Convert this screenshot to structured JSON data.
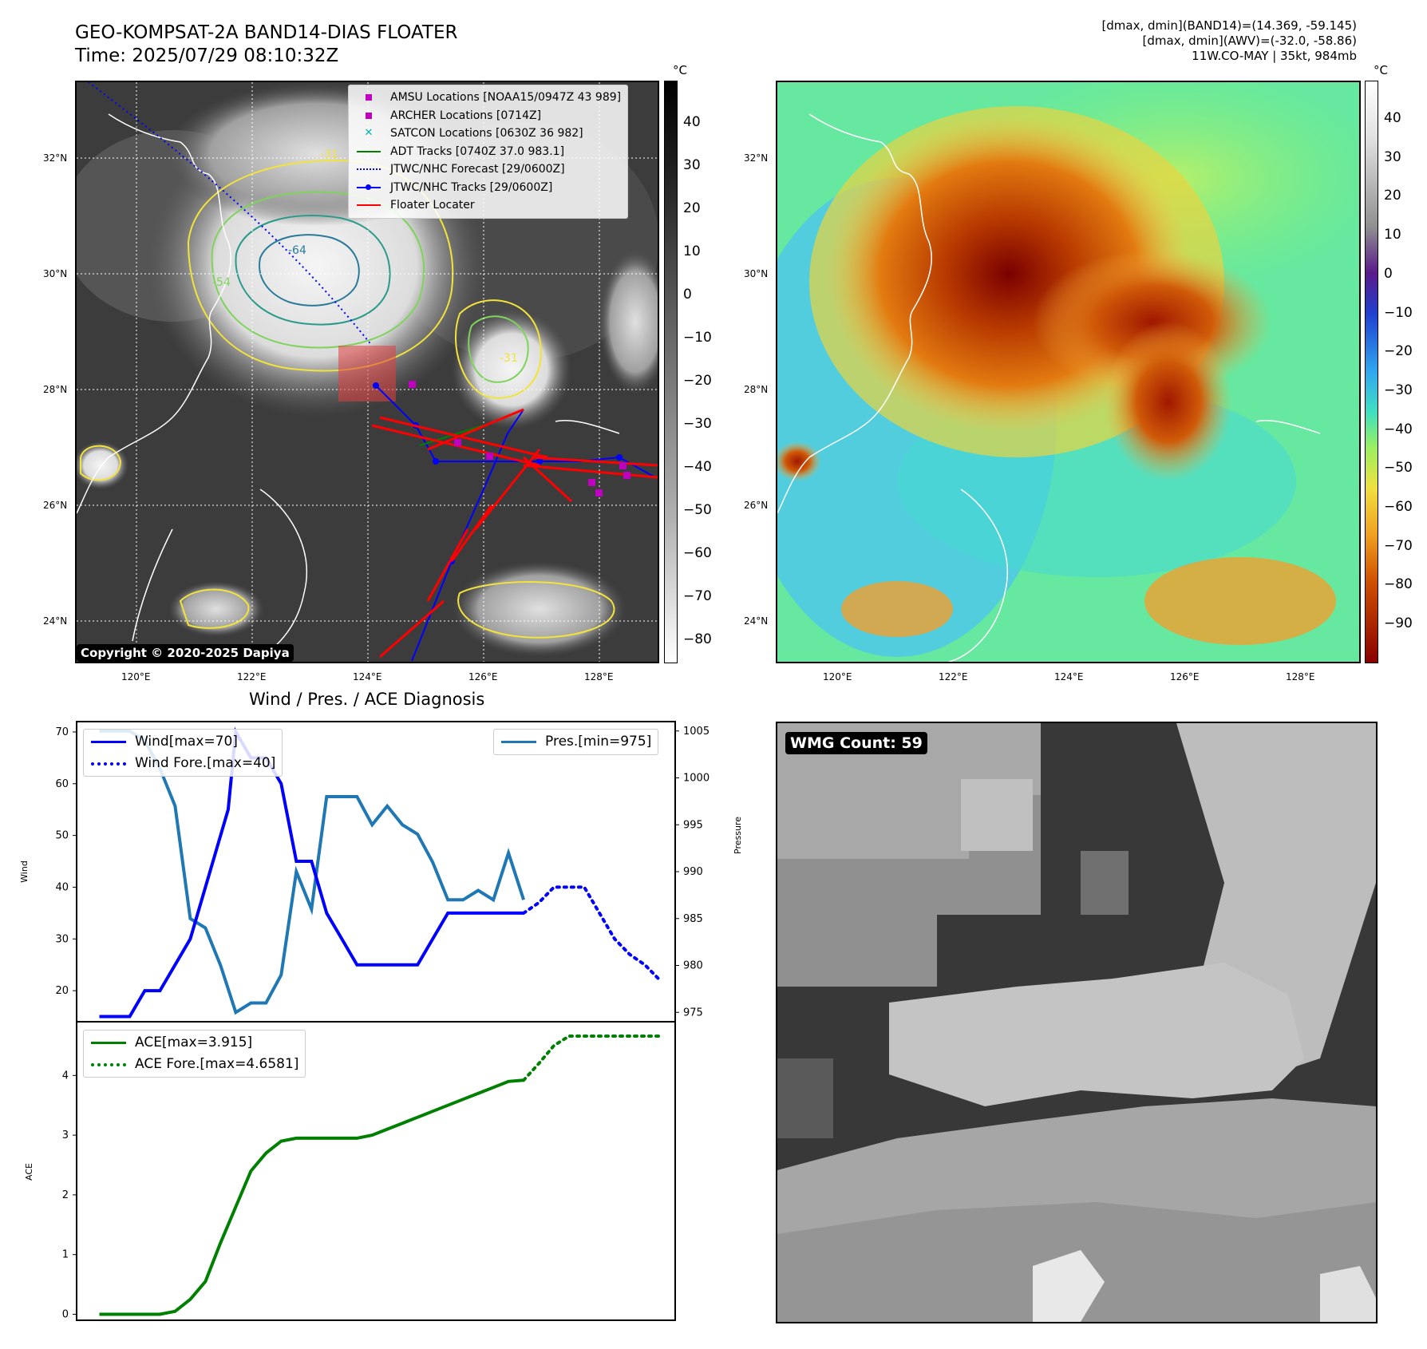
{
  "header": {
    "title_line1": "GEO-KOMPSAT-2A BAND14-DIAS FLOATER",
    "title_line2": "Time: 2025/07/29 08:10:32Z",
    "info_line1": "[dmax, dmin](BAND14)=(14.369, -59.145)",
    "info_line2": "[dmax, dmin](AWV)=(-32.0, -58.86)",
    "info_line3": "11W.CO-MAY | 35kt, 984mb"
  },
  "map": {
    "lat_labels": [
      "32°N",
      "30°N",
      "28°N",
      "26°N",
      "24°N"
    ],
    "lon_labels": [
      "120°E",
      "122°E",
      "124°E",
      "126°E",
      "128°E"
    ],
    "copyright": "Copyright © 2020-2025 Dapiya",
    "legend": [
      {
        "label": "AMSU Locations [NOAA15/0947Z 43 989]",
        "color": "#c000c0",
        "marker": "square"
      },
      {
        "label": "ARCHER Locations [0714Z]",
        "color": "#c000c0",
        "marker": "square"
      },
      {
        "label": "SATCON Locations [0630Z 36 982]",
        "color": "#00b0b0",
        "marker": "x"
      },
      {
        "label": "ADT Tracks [0740Z 37.0 983.1]",
        "color": "#008000",
        "marker": "line"
      },
      {
        "label": "JTWC/NHC Forecast [29/0600Z]",
        "color": "#0000ff",
        "marker": "dotted"
      },
      {
        "label": "JTWC/NHC Tracks [29/0600Z]",
        "color": "#0000ff",
        "marker": "line-dot"
      },
      {
        "label": "Floater Locater",
        "color": "#ff0000",
        "marker": "line"
      }
    ],
    "contour_labels": [
      "-31",
      "-54",
      "-64",
      "-54",
      "-31"
    ],
    "unit": "°C"
  },
  "colorbar_gray": {
    "unit": "°C",
    "ticks": [
      "40",
      "30",
      "20",
      "10",
      "0",
      "−10",
      "−20",
      "−30",
      "−40",
      "−50",
      "−60",
      "−70",
      "−80"
    ]
  },
  "colorbar_color": {
    "unit": "°C",
    "ticks": [
      "40",
      "30",
      "20",
      "10",
      "0",
      "−10",
      "−20",
      "−30",
      "−40",
      "−50",
      "−60",
      "−70",
      "−80",
      "−90"
    ]
  },
  "diagnosis_title": "Wind / Pres. / ACE Diagnosis",
  "wmg": {
    "label": "WMG Count: 59"
  },
  "chart_data": [
    {
      "type": "line",
      "title": "Wind / Pres. / ACE Diagnosis",
      "ylabel": "Wind",
      "y2label": "Pressure",
      "ylim": [
        14,
        72
      ],
      "y2lim": [
        974,
        1006
      ],
      "yticks": [
        20,
        30,
        40,
        50,
        60,
        70
      ],
      "y2ticks": [
        975,
        980,
        985,
        990,
        995,
        1000,
        1005
      ],
      "legend_left": [
        "Wind[max=70]",
        "Wind Fore.[max=40]"
      ],
      "legend_right": [
        "Pres.[min=975]"
      ],
      "series": [
        {
          "name": "Wind[max=70]",
          "color": "#0000ff",
          "style": "solid",
          "x": [
            0,
            2,
            4,
            6,
            8,
            10,
            12,
            14,
            16,
            17,
            18,
            20,
            22,
            24,
            26,
            28,
            30,
            32,
            34,
            36,
            38,
            40,
            42,
            44,
            46,
            48,
            50,
            52,
            54,
            56
          ],
          "values": [
            15,
            15,
            15,
            20,
            20,
            25,
            30,
            40,
            50,
            55,
            70,
            65,
            65,
            60,
            45,
            45,
            35,
            30,
            25,
            25,
            25,
            25,
            25,
            30,
            35,
            35,
            35,
            35,
            35,
            35
          ]
        },
        {
          "name": "Wind Fore.[max=40]",
          "color": "#0000ff",
          "style": "dotted",
          "x": [
            56,
            58,
            60,
            62,
            64,
            66,
            68,
            70,
            72,
            74
          ],
          "values": [
            35,
            37,
            40,
            40,
            40,
            35,
            30,
            27,
            25,
            22
          ]
        },
        {
          "name": "Pres.[min=975]",
          "color": "#1f77b4",
          "style": "solid",
          "axis": "right",
          "x": [
            0,
            2,
            4,
            6,
            8,
            10,
            12,
            14,
            16,
            18,
            20,
            22,
            24,
            26,
            28,
            30,
            32,
            34,
            36,
            38,
            40,
            42,
            44,
            46,
            48,
            50,
            52,
            54,
            56
          ],
          "values": [
            1005,
            1005,
            1005,
            1004,
            1001,
            997,
            985,
            984,
            980,
            975,
            976,
            976,
            979,
            990,
            986,
            998,
            998,
            998,
            995,
            997,
            995,
            994,
            991,
            987,
            987,
            988,
            987,
            992,
            987
          ]
        }
      ]
    },
    {
      "type": "line",
      "ylabel": "ACE",
      "ylim": [
        -0.1,
        4.9
      ],
      "yticks": [
        0,
        1,
        2,
        3,
        4
      ],
      "legend": [
        "ACE[max=3.915]",
        "ACE Fore.[max=4.6581]"
      ],
      "series": [
        {
          "name": "ACE[max=3.915]",
          "color": "#008000",
          "style": "solid",
          "x": [
            0,
            4,
            8,
            10,
            12,
            14,
            16,
            18,
            20,
            22,
            24,
            26,
            28,
            30,
            32,
            34,
            36,
            38,
            40,
            42,
            44,
            46,
            48,
            50,
            52,
            54,
            56
          ],
          "values": [
            0,
            0,
            0,
            0.05,
            0.25,
            0.55,
            1.2,
            1.8,
            2.4,
            2.7,
            2.9,
            2.95,
            2.95,
            2.95,
            2.95,
            2.95,
            3.0,
            3.1,
            3.2,
            3.3,
            3.4,
            3.5,
            3.6,
            3.7,
            3.8,
            3.9,
            3.92
          ]
        },
        {
          "name": "ACE Fore.[max=4.6581]",
          "color": "#008000",
          "style": "dotted",
          "x": [
            56,
            58,
            60,
            62,
            64,
            66,
            68,
            70,
            72,
            74
          ],
          "values": [
            3.92,
            4.2,
            4.5,
            4.66,
            4.66,
            4.66,
            4.66,
            4.66,
            4.66,
            4.66
          ]
        }
      ]
    }
  ]
}
